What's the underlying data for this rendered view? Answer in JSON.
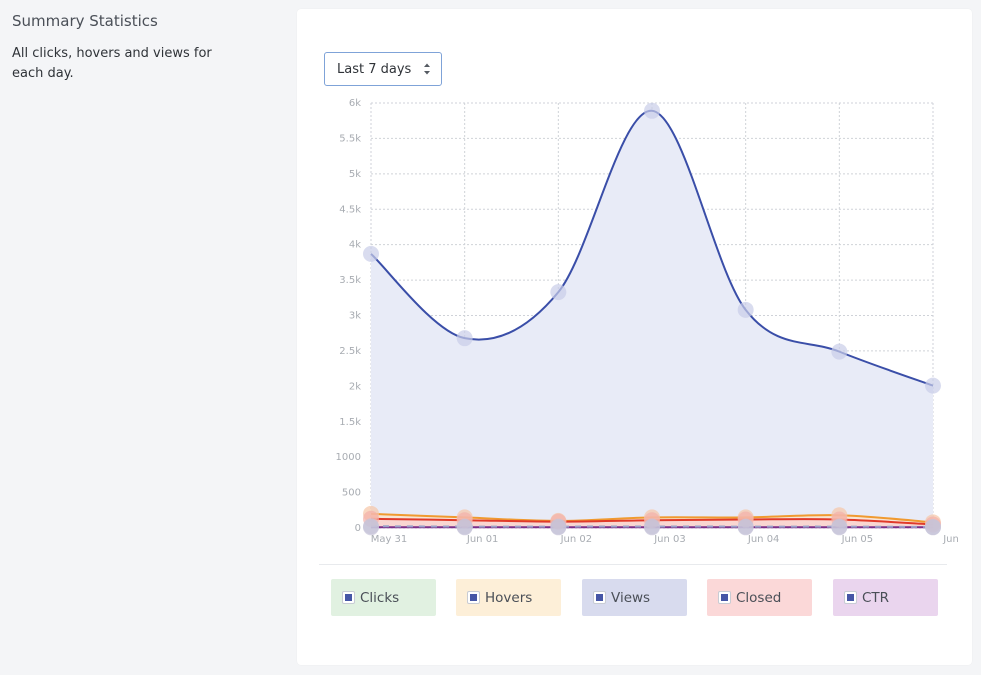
{
  "sidebar": {
    "title": "Summary Statistics",
    "description": "All clicks, hovers and views for each day."
  },
  "range_select": {
    "value": "Last 7 days"
  },
  "legend": [
    {
      "label": "Clicks",
      "bg": "#e1f1e1"
    },
    {
      "label": "Hovers",
      "bg": "#fdefd8"
    },
    {
      "label": "Views",
      "bg": "#d8dbee"
    },
    {
      "label": "Closed",
      "bg": "#fbd8d8"
    },
    {
      "label": "CTR",
      "bg": "#ead5ee"
    }
  ],
  "chart_data": {
    "type": "area",
    "categories": [
      "May 31",
      "Jun 01",
      "Jun 02",
      "Jun 03",
      "Jun 04",
      "Jun 05",
      "Jun"
    ],
    "y_ticks": [
      "0",
      "500",
      "1000",
      "1.5k",
      "2k",
      "2.5k",
      "3k",
      "3.5k",
      "4k",
      "4.5k",
      "5k",
      "5.5k",
      "6k"
    ],
    "ylim": [
      0,
      6000
    ],
    "grid": true,
    "series": [
      {
        "values": [
          3870,
          2680,
          3330,
          5890,
          3080,
          2490,
          2010
        ],
        "color": "#3a4ea8",
        "fill": "#e8ebf7",
        "marker": "#c9cde8"
      },
      {
        "values": [
          200,
          150,
          100,
          150,
          150,
          180,
          80
        ],
        "color": "#f09a30",
        "fill": "#fbe3cc",
        "marker": "#f7c6a6"
      },
      {
        "values": [
          130,
          110,
          90,
          110,
          120,
          120,
          50
        ],
        "color": "#e03a2a",
        "fill": "#f9d2cf",
        "marker": "#f3b0aa"
      },
      {
        "values": [
          10,
          10,
          10,
          10,
          10,
          10,
          10
        ],
        "color": "#7a2f8a",
        "fill": "none",
        "marker": "#c6c3d8"
      },
      {
        "values": [
          25,
          20,
          20,
          22,
          20,
          20,
          15
        ],
        "color": "#9aa0c8",
        "fill": "none",
        "marker": "#c6c3d8",
        "dashed": true
      }
    ]
  }
}
